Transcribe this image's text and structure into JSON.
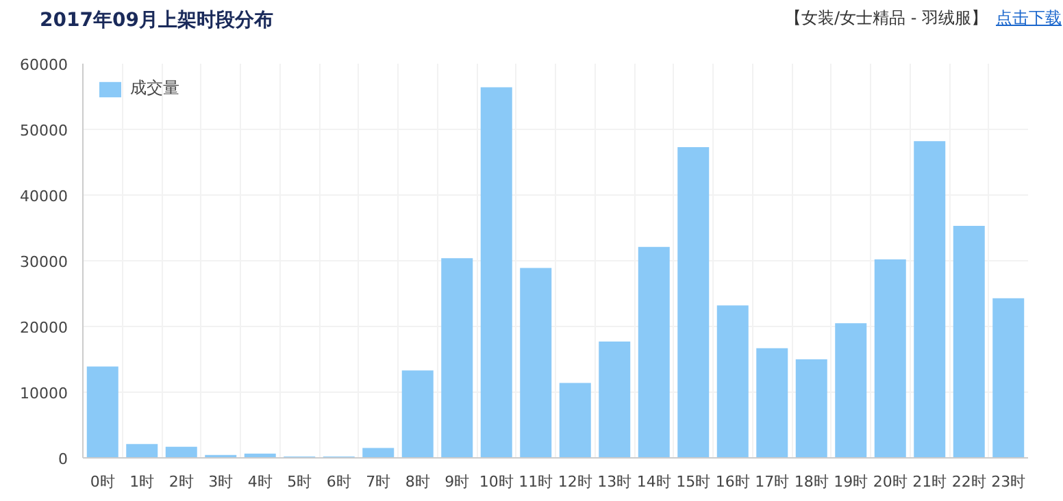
{
  "chart_data": {
    "type": "bar",
    "title": "2017年09月上架时段分布",
    "annotations": [
      "【女装/女士精品 - 羽绒服】",
      "点击下载"
    ],
    "categories": [
      "0时",
      "1时",
      "2时",
      "3时",
      "4时",
      "5时",
      "6时",
      "7时",
      "8时",
      "9时",
      "10时",
      "11时",
      "12时",
      "13时",
      "14时",
      "15时",
      "16时",
      "17时",
      "18时",
      "19时",
      "20时",
      "21时",
      "22时",
      "23时"
    ],
    "series": [
      {
        "name": "成交量",
        "color": "#8ac9f7",
        "values": [
          13900,
          2100,
          1700,
          450,
          650,
          200,
          200,
          1500,
          13300,
          30400,
          56400,
          28900,
          11400,
          17700,
          32100,
          47300,
          23200,
          16700,
          15000,
          20500,
          30200,
          48200,
          35300,
          24300
        ]
      }
    ],
    "ylim": [
      0,
      60000
    ],
    "yticks": [
      0,
      10000,
      20000,
      30000,
      40000,
      50000,
      60000
    ],
    "grid": true,
    "legend": "top left"
  }
}
